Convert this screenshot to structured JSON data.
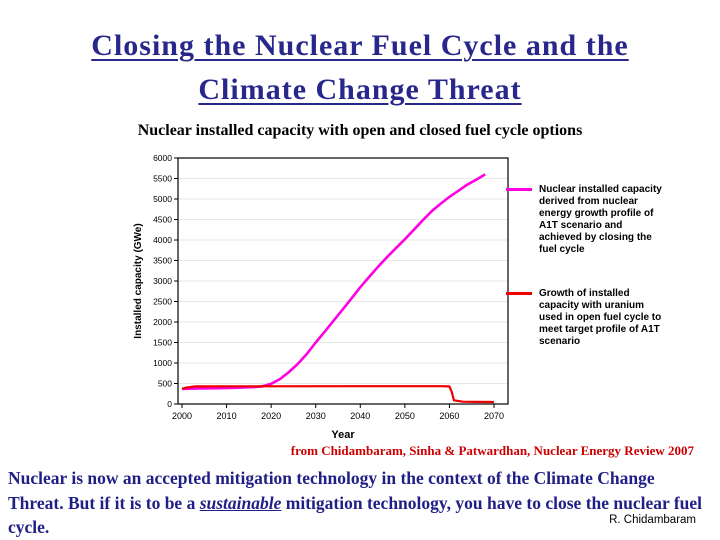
{
  "slide": {
    "title_line1": "Closing the Nuclear Fuel Cycle and the",
    "title_line2": "Climate Change Threat",
    "subtitle": "Nuclear installed capacity with open and closed fuel cycle options",
    "attribution": "from Chidambaram, Sinha & Patwardhan, Nuclear Energy Review 2007",
    "credit": "R. Chidambaram",
    "body_segments": [
      {
        "text": "Nuclear is now an accepted mitigation technology in the context of the Climate Change Threat. But if it is to be a ",
        "emph": false
      },
      {
        "text": "sustainable",
        "emph": true
      },
      {
        "text": " mitigation technology, you have to close the nuclear fuel cycle.",
        "emph": false
      }
    ]
  },
  "chart_data": {
    "type": "line",
    "title": "",
    "xlabel": "Year",
    "ylabel": "Installed capacity (GWe)",
    "xlim": [
      2000,
      2070
    ],
    "ylim": [
      0,
      6000
    ],
    "xticks": [
      2000,
      2010,
      2020,
      2030,
      2040,
      2050,
      2060,
      2070
    ],
    "ytick_step": 500,
    "grid": true,
    "legend_position": "right",
    "series": [
      {
        "name": "Nuclear installed capacity derived from nuclear energy growth profile of A1T scenario and achieved by closing the fuel cycle",
        "color": "#ff00e0",
        "x": [
          2000,
          2004,
          2008,
          2012,
          2016,
          2018,
          2020,
          2022,
          2024,
          2026,
          2028,
          2030,
          2032,
          2034,
          2036,
          2038,
          2040,
          2042,
          2044,
          2046,
          2048,
          2050,
          2052,
          2054,
          2056,
          2058,
          2060,
          2062,
          2064,
          2066,
          2068
        ],
        "y": [
          370,
          378,
          386,
          396,
          412,
          430,
          490,
          610,
          780,
          980,
          1220,
          1500,
          1760,
          2030,
          2300,
          2570,
          2850,
          3100,
          3350,
          3580,
          3800,
          4020,
          4250,
          4480,
          4700,
          4880,
          5050,
          5200,
          5350,
          5470,
          5600
        ]
      },
      {
        "name": "Growth of installed capacity with uranium used in open fuel cycle to meet target profile of A1T scenario",
        "color": "#ee0000",
        "x": [
          2000,
          2001,
          2003,
          2040,
          2058,
          2060,
          2060.5,
          2061,
          2063,
          2066,
          2070
        ],
        "y": [
          370,
          400,
          430,
          435,
          435,
          430,
          300,
          90,
          55,
          50,
          48
        ]
      }
    ]
  }
}
